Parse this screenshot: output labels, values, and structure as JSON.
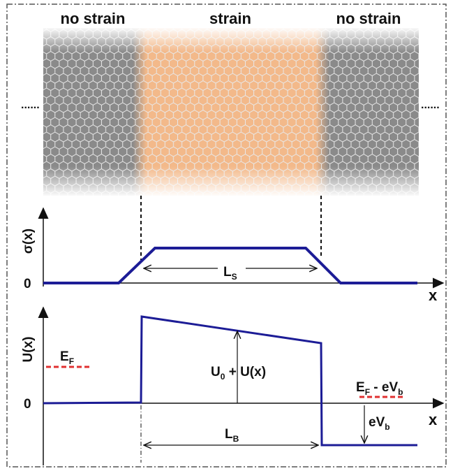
{
  "regions": [
    "no strain",
    "strain",
    "no strain"
  ],
  "ellipsis_left": "......",
  "ellipsis_right": "......",
  "top_plot": {
    "y_label": "σ(x)",
    "zero_label": "0",
    "x_label": "x",
    "width_label": {
      "main": "L",
      "sub": "S"
    }
  },
  "bottom_plot": {
    "y_label": "U(x)",
    "zero_label": "0",
    "x_label": "x",
    "fermi_left": {
      "main": "E",
      "sub": "F"
    },
    "fermi_right": {
      "main": "E",
      "sub": "F",
      "rest": " - eV",
      "sub2": "b"
    },
    "barrier": {
      "main": "U",
      "sub": "0",
      "rest": " + U(x)"
    },
    "bias": {
      "main": "eV",
      "sub": "b"
    },
    "width_label": {
      "main": "L",
      "sub": "B"
    }
  }
}
